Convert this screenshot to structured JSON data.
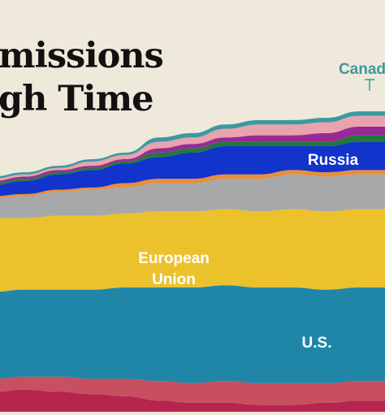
{
  "title": {
    "line1": "missions",
    "line2": "gh Time"
  },
  "chart_data": {
    "type": "area",
    "title": "missions gh Time",
    "xlabel": "",
    "ylabel": "",
    "stacking": "stacked from bottom",
    "grid": false,
    "x": [
      0,
      1,
      2,
      3,
      4,
      5,
      6,
      7,
      8,
      9,
      10,
      11,
      12
    ],
    "series": [
      {
        "name": "",
        "color": "#b5254d",
        "values": [
          14,
          15,
          14,
          13,
          12,
          10,
          9,
          9,
          8,
          8,
          9,
          10,
          10
        ]
      },
      {
        "name": "",
        "color": "#c74f60",
        "values": [
          6,
          6,
          7,
          7,
          8,
          9,
          9,
          10,
          10,
          10,
          9,
          9,
          9
        ]
      },
      {
        "name": "U.S.",
        "color": "#1f86a8",
        "values": [
          40,
          40,
          40,
          41,
          42,
          43,
          44,
          44,
          44,
          44,
          43,
          43,
          43
        ]
      },
      {
        "name": "European Union",
        "color": "#ecc22c",
        "values": [
          34,
          33,
          34,
          34,
          34,
          35,
          35,
          35,
          35,
          36,
          36,
          36,
          36
        ]
      },
      {
        "name": "",
        "color": "#a7a8aa",
        "values": [
          9,
          10,
          11,
          12,
          12,
          13,
          13,
          14,
          15,
          16,
          16,
          16,
          16
        ]
      },
      {
        "name": "",
        "color": "#e88f3a",
        "values": [
          1,
          1,
          1,
          1,
          2,
          2,
          2,
          2,
          2,
          2,
          2,
          2,
          2
        ]
      },
      {
        "name": "Russia",
        "color": "#1233cc",
        "values": [
          5,
          6,
          7,
          8,
          9,
          10,
          12,
          13,
          13,
          11,
          12,
          13,
          13
        ]
      },
      {
        "name": "",
        "color": "#207a3c",
        "values": [
          1,
          1,
          1,
          1,
          1,
          2,
          2,
          2,
          2,
          2,
          2,
          3,
          3
        ]
      },
      {
        "name": "",
        "color": "#982a94",
        "values": [
          1,
          1,
          1,
          1,
          1,
          2,
          2,
          2,
          3,
          3,
          4,
          4,
          4
        ]
      },
      {
        "name": "",
        "color": "#e8a3ae",
        "values": [
          1,
          1,
          1,
          2,
          2,
          3,
          3,
          4,
          5,
          5,
          5,
          5,
          5
        ]
      },
      {
        "name": "Canad",
        "color": "#3a9aa0",
        "values": [
          1,
          1,
          1,
          1,
          1,
          2,
          2,
          2,
          2,
          2,
          2,
          2,
          2
        ]
      }
    ],
    "ylim": [
      0,
      155
    ],
    "annotations": [
      {
        "text": "Russia",
        "series": "Russia"
      },
      {
        "text": "European",
        "series": "European Union"
      },
      {
        "text": "Union",
        "series": "European Union"
      },
      {
        "text": "U.S.",
        "series": "U.S."
      },
      {
        "text": "Canad",
        "series": "Canad"
      }
    ]
  }
}
